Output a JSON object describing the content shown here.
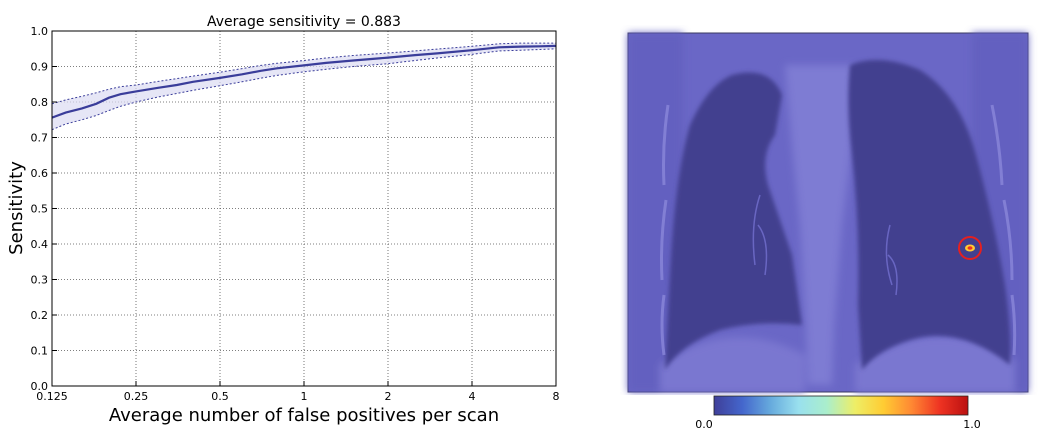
{
  "chart_data": [
    {
      "type": "line",
      "title": "Average sensitivity = 0.883",
      "xlabel": "Average number of false positives per scan",
      "ylabel": "Sensitivity",
      "x_scale": "log2",
      "xlim": [
        0.125,
        8
      ],
      "ylim": [
        0.0,
        1.0
      ],
      "x_ticks": [
        0.125,
        0.25,
        0.5,
        1,
        2,
        4,
        8
      ],
      "x_tick_labels": [
        "0.125",
        "0.25",
        "0.5",
        "1",
        "2",
        "4",
        "8"
      ],
      "y_ticks": [
        0.0,
        0.1,
        0.2,
        0.3,
        0.4,
        0.5,
        0.6,
        0.7,
        0.8,
        0.9,
        1.0
      ],
      "y_tick_labels": [
        "0.0",
        "0.1",
        "0.2",
        "0.3",
        "0.4",
        "0.5",
        "0.6",
        "0.7",
        "0.8",
        "0.9",
        "1.0"
      ],
      "grid": true,
      "colors": {
        "line": "#3a3d9a",
        "band": "#dcdcf2"
      },
      "series": [
        {
          "x": [
            0.125,
            0.14,
            0.16,
            0.18,
            0.2,
            0.22,
            0.25,
            0.3,
            0.35,
            0.4,
            0.5,
            0.6,
            0.7,
            0.8,
            1,
            1.2,
            1.5,
            2,
            2.5,
            3,
            4,
            5,
            6,
            7,
            8
          ],
          "values": [
            0.756,
            0.77,
            0.782,
            0.795,
            0.812,
            0.822,
            0.83,
            0.84,
            0.848,
            0.857,
            0.868,
            0.878,
            0.888,
            0.895,
            0.903,
            0.91,
            0.917,
            0.925,
            0.932,
            0.937,
            0.946,
            0.954,
            0.956,
            0.957,
            0.958
          ],
          "lower": [
            0.722,
            0.738,
            0.75,
            0.762,
            0.776,
            0.788,
            0.8,
            0.814,
            0.824,
            0.833,
            0.846,
            0.857,
            0.867,
            0.875,
            0.885,
            0.892,
            0.9,
            0.908,
            0.917,
            0.924,
            0.934,
            0.944,
            0.946,
            0.948,
            0.95
          ],
          "upper": [
            0.795,
            0.806,
            0.816,
            0.826,
            0.836,
            0.843,
            0.848,
            0.858,
            0.866,
            0.873,
            0.884,
            0.894,
            0.903,
            0.909,
            0.917,
            0.924,
            0.931,
            0.938,
            0.944,
            0.949,
            0.957,
            0.964,
            0.966,
            0.966,
            0.966
          ]
        }
      ]
    },
    {
      "type": "heatmap",
      "colorbar": {
        "min_label": "0.0",
        "max_label": "1.0",
        "colors": [
          "#3f3f99",
          "#4466cc",
          "#66aadd",
          "#99e0ee",
          "#aaeecc",
          "#eeee66",
          "#ffcc33",
          "#ff8833",
          "#ee3322",
          "#bb1111"
        ]
      },
      "highlight": {
        "ring_color": "#e52020"
      }
    }
  ]
}
